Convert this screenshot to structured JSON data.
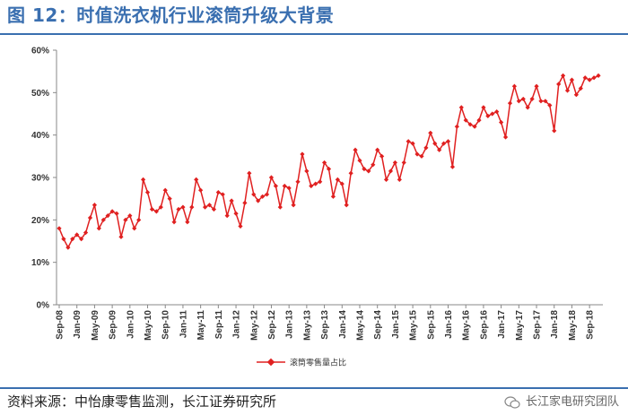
{
  "header": {
    "title": "图 12：时值洗衣机行业滚筒升级大背景"
  },
  "footer": {
    "source": "资料来源：中怡康零售监测，长江证券研究所",
    "watermark": "长江家电研究团队"
  },
  "colors": {
    "accent": "#3a6fb0",
    "series": "#e02020"
  },
  "chart_data": {
    "type": "line",
    "ylim": [
      0,
      60
    ],
    "yticks": [
      "0%",
      "10%",
      "20%",
      "30%",
      "40%",
      "50%",
      "60%"
    ],
    "xlabels": [
      "Sep-08",
      "Jan-09",
      "May-09",
      "Sep-09",
      "Jan-10",
      "May-10",
      "Sep-10",
      "Jan-11",
      "May-11",
      "Sep-11",
      "Jan-12",
      "May-12",
      "Sep-12",
      "Jan-13",
      "May-13",
      "Sep-13",
      "Jan-14",
      "May-14",
      "Sep-14",
      "Jan-15",
      "May-15",
      "Sep-15",
      "Jan-16",
      "May-16",
      "Sep-16",
      "Jan-17",
      "May-17",
      "Sep-17",
      "Jan-18",
      "May-18",
      "Sep-18"
    ],
    "series": [
      {
        "name": "滚筒零售量占比",
        "values": [
          18.0,
          15.5,
          13.5,
          15.5,
          16.5,
          15.5,
          17.0,
          20.5,
          23.5,
          18.0,
          20.0,
          21.0,
          22.0,
          21.5,
          16.0,
          20.0,
          21.0,
          18.0,
          20.0,
          29.5,
          26.5,
          22.5,
          22.0,
          23.0,
          27.0,
          25.0,
          19.5,
          22.5,
          23.0,
          19.5,
          23.0,
          29.5,
          27.0,
          23.0,
          23.5,
          22.5,
          26.5,
          26.0,
          21.0,
          24.5,
          21.5,
          18.5,
          24.0,
          31.0,
          26.0,
          24.5,
          25.5,
          26.0,
          30.0,
          28.0,
          23.0,
          28.0,
          27.5,
          23.5,
          29.0,
          35.5,
          31.5,
          28.0,
          28.5,
          29.0,
          33.5,
          32.0,
          25.5,
          29.5,
          28.5,
          23.5,
          31.0,
          36.5,
          34.0,
          32.0,
          31.5,
          33.0,
          36.5,
          35.0,
          29.5,
          31.5,
          33.5,
          29.5,
          33.5,
          38.5,
          38.0,
          35.5,
          35.0,
          37.0,
          40.5,
          38.0,
          36.5,
          38.0,
          38.5,
          32.5,
          42.0,
          46.5,
          43.5,
          42.5,
          42.0,
          43.5,
          46.5,
          44.5,
          45.0,
          45.5,
          43.0,
          39.5,
          47.5,
          51.5,
          48.0,
          48.5,
          46.5,
          48.5,
          51.5,
          48.0,
          48.0,
          47.0,
          41.0,
          52.0,
          54.0,
          50.5,
          53.0,
          49.5,
          51.0,
          53.5,
          53.0,
          53.5,
          54.0
        ]
      }
    ]
  }
}
